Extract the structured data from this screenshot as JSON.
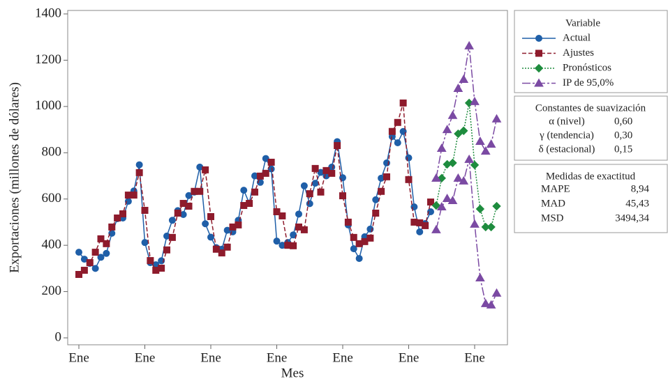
{
  "chart_data": {
    "type": "line",
    "xlabel": "Mes",
    "ylabel": "Exportaciones (millones de dólares)",
    "categories": [
      "Ene",
      null,
      null,
      null,
      null,
      null,
      null,
      null,
      null,
      null,
      null,
      null,
      "Ene",
      null,
      null,
      null,
      null,
      null,
      null,
      null,
      null,
      null,
      null,
      null,
      "Ene",
      null,
      null,
      null,
      null,
      null,
      null,
      null,
      null,
      null,
      null,
      null,
      "Ene",
      null,
      null,
      null,
      null,
      null,
      null,
      null,
      null,
      null,
      null,
      null,
      "Ene",
      null,
      null,
      null,
      null,
      null,
      null,
      null,
      null,
      null,
      null,
      null,
      "Ene",
      null,
      null,
      null,
      null,
      null,
      null,
      null,
      null,
      null,
      null,
      null,
      "Ene",
      null,
      null,
      null,
      null
    ],
    "ylim": [
      -30,
      1415
    ],
    "yticks": [
      0,
      200,
      400,
      600,
      800,
      1000,
      1200,
      1400
    ],
    "legend_title": "Variable",
    "series": [
      {
        "name": "Actual",
        "color": "#1f5fa8",
        "marker": "circle",
        "line_style": "solid",
        "values": [
          370,
          340,
          322,
          300,
          348,
          365,
          452,
          515,
          518,
          590,
          635,
          748,
          412,
          325,
          316,
          333,
          440,
          508,
          550,
          533,
          615,
          630,
          738,
          493,
          435,
          390,
          383,
          465,
          458,
          508,
          638,
          582,
          700,
          672,
          775,
          730,
          418,
          400,
          412,
          445,
          535,
          657,
          580,
          668,
          715,
          700,
          738,
          848,
          692,
          488,
          385,
          343,
          437,
          470,
          597,
          690,
          756,
          870,
          843,
          892,
          778,
          566,
          458,
          494,
          545,
          null,
          null,
          null,
          null,
          null,
          null,
          null,
          null,
          null,
          null,
          null,
          null
        ]
      },
      {
        "name": "Ajustes",
        "color": "#8e1b2c",
        "marker": "square",
        "line_style": "dashed",
        "values": [
          274,
          292,
          325,
          370,
          428,
          407,
          479,
          518,
          536,
          617,
          617,
          714,
          551,
          334,
          292,
          301,
          380,
          434,
          539,
          581,
          569,
          633,
          633,
          726,
          524,
          383,
          367,
          392,
          479,
          488,
          572,
          581,
          630,
          699,
          711,
          759,
          545,
          527,
          400,
          398,
          479,
          467,
          623,
          732,
          630,
          723,
          711,
          831,
          614,
          500,
          434,
          407,
          416,
          431,
          539,
          633,
          696,
          892,
          931,
          1015,
          684,
          500,
          497,
          485,
          587,
          null,
          null,
          null,
          null,
          null,
          null,
          null,
          null,
          null,
          null,
          null,
          null
        ]
      },
      {
        "name": "Pronósticos",
        "color": "#1e8c3e",
        "marker": "diamond",
        "line_style": "dotted",
        "values": [
          null,
          null,
          null,
          null,
          null,
          null,
          null,
          null,
          null,
          null,
          null,
          null,
          null,
          null,
          null,
          null,
          null,
          null,
          null,
          null,
          null,
          null,
          null,
          null,
          null,
          null,
          null,
          null,
          null,
          null,
          null,
          null,
          null,
          null,
          null,
          null,
          null,
          null,
          null,
          null,
          null,
          null,
          null,
          null,
          null,
          null,
          null,
          null,
          null,
          null,
          null,
          null,
          null,
          null,
          null,
          null,
          null,
          null,
          null,
          null,
          null,
          null,
          null,
          null,
          null,
          572,
          690,
          750,
          756,
          882,
          895,
          1015,
          747,
          557,
          479,
          479,
          569
        ]
      },
      {
        "name": "IP de 95,0%",
        "color": "#7b4aa3",
        "marker": "triangle",
        "line_style": "dashdot",
        "lower": [
          null,
          null,
          null,
          null,
          null,
          null,
          null,
          null,
          null,
          null,
          null,
          null,
          null,
          null,
          null,
          null,
          null,
          null,
          null,
          null,
          null,
          null,
          null,
          null,
          null,
          null,
          null,
          null,
          null,
          null,
          null,
          null,
          null,
          null,
          null,
          null,
          null,
          null,
          null,
          null,
          null,
          null,
          null,
          null,
          null,
          null,
          null,
          null,
          null,
          null,
          null,
          null,
          null,
          null,
          null,
          null,
          null,
          null,
          null,
          null,
          null,
          null,
          null,
          null,
          null,
          467,
          566,
          602,
          593,
          690,
          678,
          771,
          491,
          259,
          148,
          142,
          193
        ],
        "upper": [
          null,
          null,
          null,
          null,
          null,
          null,
          null,
          null,
          null,
          null,
          null,
          null,
          null,
          null,
          null,
          null,
          null,
          null,
          null,
          null,
          null,
          null,
          null,
          null,
          null,
          null,
          null,
          null,
          null,
          null,
          null,
          null,
          null,
          null,
          null,
          null,
          null,
          null,
          null,
          null,
          null,
          null,
          null,
          null,
          null,
          null,
          null,
          null,
          null,
          null,
          null,
          null,
          null,
          null,
          null,
          null,
          null,
          null,
          null,
          null,
          null,
          null,
          null,
          null,
          null,
          690,
          819,
          900,
          961,
          1078,
          1117,
          1262,
          1021,
          849,
          807,
          837,
          946
        ]
      }
    ],
    "smoothing": {
      "title": "Constantes de suavización",
      "rows": [
        [
          "α (nivel)",
          "0,60"
        ],
        [
          "γ (tendencia)",
          "0,30"
        ],
        [
          "δ (estacional)",
          "0,15"
        ]
      ]
    },
    "accuracy": {
      "title": "Medidas de exactitud",
      "rows": [
        [
          "MAPE",
          "8,94"
        ],
        [
          "MAD",
          "45,43"
        ],
        [
          "MSD",
          "3494,34"
        ]
      ]
    }
  }
}
